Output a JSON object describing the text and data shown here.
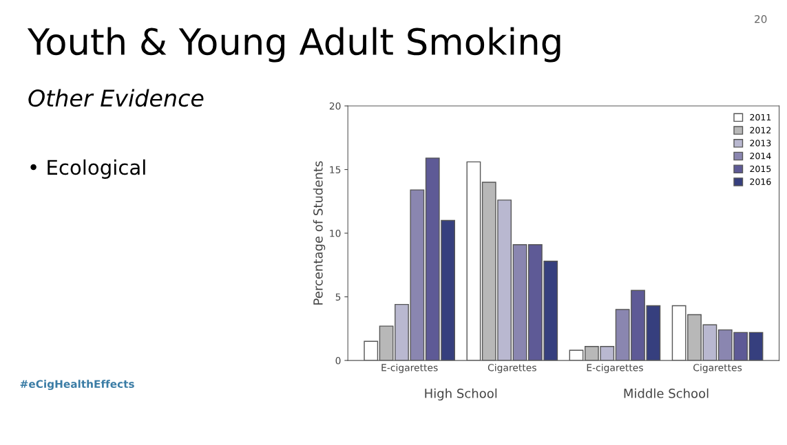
{
  "chart_data": {
    "type": "bar",
    "title": "Youth & Young Adult Smoking",
    "subtitle": "Other Evidence",
    "ylabel": "Percentage of Students",
    "categories": [
      "E-cigarettes",
      "Cigarettes",
      "E-cigarettes",
      "Cigarettes"
    ],
    "series": [
      {
        "name": "2011",
        "color": "#ffffff",
        "values": [
          1.5,
          15.6,
          0.8,
          4.3
        ]
      },
      {
        "name": "2012",
        "color": "#b8b8b8",
        "values": [
          2.7,
          14.0,
          1.1,
          3.6
        ]
      },
      {
        "name": "2013",
        "color": "#b9b8d0",
        "values": [
          4.4,
          12.6,
          1.1,
          2.8
        ]
      },
      {
        "name": "2014",
        "color": "#8a86b0",
        "values": [
          13.4,
          9.1,
          4.0,
          2.4
        ]
      },
      {
        "name": "2015",
        "color": "#5e5a96",
        "values": [
          15.9,
          9.1,
          5.5,
          2.2
        ]
      },
      {
        "name": "2016",
        "color": "#363f7e",
        "values": [
          11.0,
          7.8,
          4.3,
          2.2
        ]
      }
    ],
    "ylim": [
      0,
      20
    ],
    "yticks": [
      0,
      5,
      10,
      15,
      20
    ],
    "legend": "top right",
    "grid": false,
    "annotations": [
      "High School",
      "Middle School",
      "• Ecological",
      "#eCigHealthEffects",
      "20"
    ]
  }
}
